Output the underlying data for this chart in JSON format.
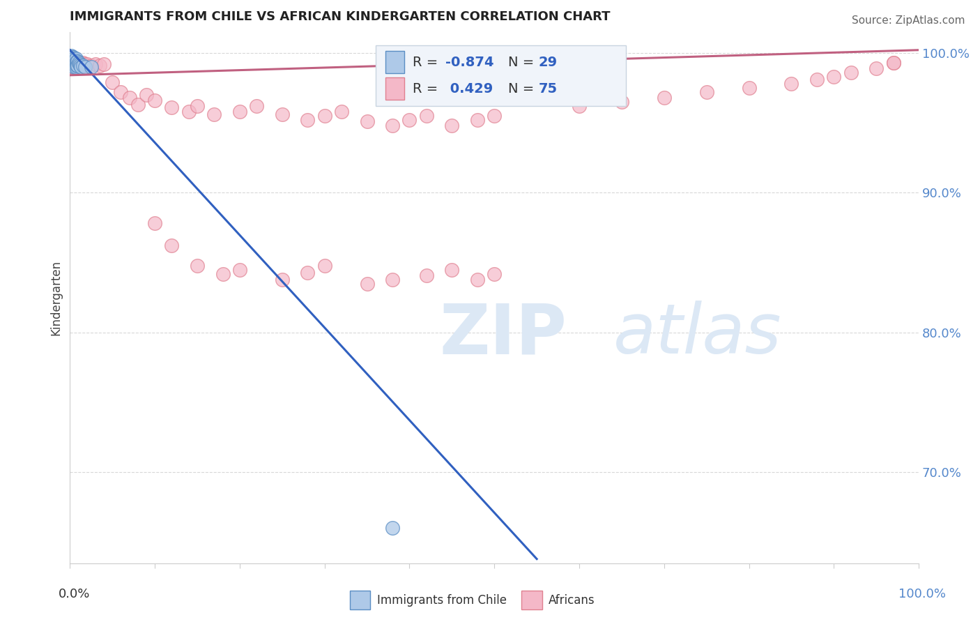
{
  "title": "IMMIGRANTS FROM CHILE VS AFRICAN KINDERGARTEN CORRELATION CHART",
  "source": "Source: ZipAtlas.com",
  "ylabel": "Kindergarten",
  "ytick_labels": [
    "100.0%",
    "90.0%",
    "80.0%",
    "70.0%"
  ],
  "ytick_positions": [
    1.0,
    0.9,
    0.8,
    0.7
  ],
  "xlim": [
    0.0,
    1.0
  ],
  "ylim": [
    0.635,
    1.015
  ],
  "legend_r_blue": "-0.874",
  "legend_n_blue": "29",
  "legend_r_pink": "0.429",
  "legend_n_pink": "75",
  "blue_scatter_color": "#aec9e8",
  "blue_edge_color": "#5b8ec4",
  "pink_scatter_color": "#f4b8c8",
  "pink_edge_color": "#e08090",
  "blue_line_color": "#3060c0",
  "pink_line_color": "#c06080",
  "watermark_color": "#dce8f5",
  "legend_box_color": "#f0f4fa",
  "legend_edge_color": "#c8d4e0",
  "grid_color": "#d8d8d8",
  "axis_color": "#cccccc",
  "ytick_color": "#5588cc",
  "blue_points_x": [
    0.001,
    0.002,
    0.002,
    0.003,
    0.003,
    0.003,
    0.004,
    0.004,
    0.004,
    0.005,
    0.005,
    0.005,
    0.006,
    0.006,
    0.007,
    0.007,
    0.007,
    0.008,
    0.008,
    0.009,
    0.009,
    0.01,
    0.011,
    0.012,
    0.013,
    0.015,
    0.018,
    0.025,
    0.38
  ],
  "blue_points_y": [
    0.998,
    0.996,
    0.993,
    0.997,
    0.994,
    0.991,
    0.997,
    0.994,
    0.991,
    0.996,
    0.993,
    0.99,
    0.995,
    0.992,
    0.996,
    0.993,
    0.99,
    0.994,
    0.991,
    0.994,
    0.991,
    0.993,
    0.992,
    0.991,
    0.99,
    0.991,
    0.99,
    0.99,
    0.66
  ],
  "pink_points_x": [
    0.001,
    0.002,
    0.002,
    0.003,
    0.003,
    0.004,
    0.004,
    0.005,
    0.005,
    0.006,
    0.007,
    0.007,
    0.008,
    0.009,
    0.01,
    0.011,
    0.012,
    0.013,
    0.015,
    0.016,
    0.018,
    0.02,
    0.025,
    0.03,
    0.035,
    0.04,
    0.05,
    0.06,
    0.07,
    0.08,
    0.09,
    0.1,
    0.12,
    0.14,
    0.15,
    0.17,
    0.2,
    0.22,
    0.25,
    0.28,
    0.3,
    0.32,
    0.35,
    0.38,
    0.4,
    0.42,
    0.45,
    0.48,
    0.5,
    0.6,
    0.65,
    0.7,
    0.75,
    0.8,
    0.85,
    0.88,
    0.9,
    0.92,
    0.95,
    0.97,
    0.1,
    0.12,
    0.15,
    0.18,
    0.2,
    0.25,
    0.28,
    0.3,
    0.35,
    0.38,
    0.42,
    0.45,
    0.48,
    0.5,
    0.97
  ],
  "pink_points_y": [
    0.993,
    0.997,
    0.991,
    0.995,
    0.99,
    0.996,
    0.991,
    0.994,
    0.99,
    0.993,
    0.994,
    0.99,
    0.992,
    0.991,
    0.993,
    0.992,
    0.991,
    0.992,
    0.993,
    0.992,
    0.99,
    0.992,
    0.991,
    0.992,
    0.991,
    0.992,
    0.979,
    0.972,
    0.968,
    0.963,
    0.97,
    0.966,
    0.961,
    0.958,
    0.962,
    0.956,
    0.958,
    0.962,
    0.956,
    0.952,
    0.955,
    0.958,
    0.951,
    0.948,
    0.952,
    0.955,
    0.948,
    0.952,
    0.955,
    0.962,
    0.965,
    0.968,
    0.972,
    0.975,
    0.978,
    0.981,
    0.983,
    0.986,
    0.989,
    0.993,
    0.878,
    0.862,
    0.848,
    0.842,
    0.845,
    0.838,
    0.843,
    0.848,
    0.835,
    0.838,
    0.841,
    0.845,
    0.838,
    0.842,
    0.993
  ],
  "blue_line_x": [
    0.0,
    0.55
  ],
  "blue_line_y": [
    1.002,
    0.638
  ],
  "pink_line_x": [
    0.0,
    1.0
  ],
  "pink_line_y": [
    0.984,
    1.002
  ],
  "xtick_count": 10
}
